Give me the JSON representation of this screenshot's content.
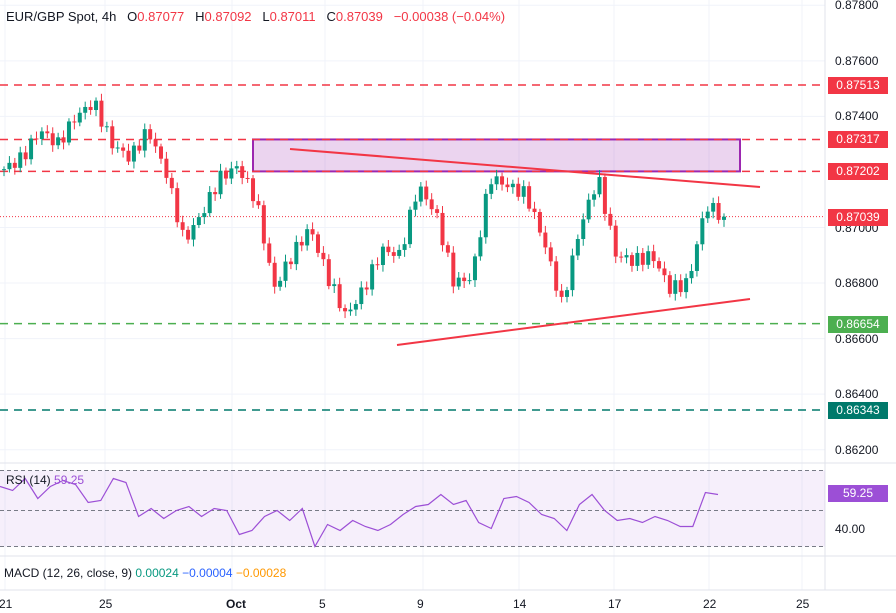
{
  "header": {
    "symbol": "EUR/GBP Spot, 4h",
    "o_label": "O",
    "o": "0.87077",
    "h_label": "H",
    "h": "0.87092",
    "l_label": "L",
    "l": "0.87011",
    "c_label": "C",
    "c": "0.87039",
    "change": "−0.00038 (−0.04%)"
  },
  "rsi": {
    "label": "RSI (14)",
    "value": "59.25",
    "tick": "40.00",
    "color": "#9c4fd6"
  },
  "macd": {
    "label": "MACD (12, 26, close, 9)",
    "v1": "0.00024",
    "v2": "−0.00004",
    "v3": "−0.00028"
  },
  "colors": {
    "up": "#089981",
    "down": "#f23645",
    "zone": "#9c27b0",
    "support": "#4caf50",
    "support2": "#00796b"
  },
  "chart_data": {
    "type": "candlestick",
    "ylim": [
      0.8618,
      0.8781
    ],
    "yticks": [
      "0.87800",
      "0.87600",
      "0.87400",
      "0.87000",
      "0.86800",
      "0.86600",
      "0.86400",
      "0.86200"
    ],
    "xticks": [
      "21",
      "25",
      "Oct",
      "5",
      "9",
      "14",
      "17",
      "22",
      "25"
    ],
    "levels": [
      {
        "label": "0.87513",
        "price": 0.87513,
        "color": "#f23645"
      },
      {
        "label": "0.87317",
        "price": 0.87317,
        "color": "#f23645"
      },
      {
        "label": "0.87202",
        "price": 0.87202,
        "color": "#f23645"
      },
      {
        "label": "0.86654",
        "price": 0.86654,
        "color": "#4caf50"
      },
      {
        "label": "0.86343",
        "price": 0.86343,
        "color": "#00796b"
      }
    ],
    "last_price": {
      "label": "0.87039",
      "price": 0.87039
    },
    "zone": [
      0.87202,
      0.87317
    ],
    "close_path": [
      0.8721,
      0.8725,
      0.8735,
      0.873,
      0.874,
      0.8745,
      0.873,
      0.8725,
      0.8735,
      0.872,
      0.8695,
      0.8705,
      0.8718,
      0.8722,
      0.871,
      0.8678,
      0.869,
      0.87,
      0.8682,
      0.8668,
      0.8678,
      0.8692,
      0.869,
      0.8715,
      0.8705,
      0.868,
      0.8682,
      0.8718,
      0.8715,
      0.8712,
      0.8695,
      0.8672,
      0.87,
      0.8718,
      0.869,
      0.8688,
      0.869,
      0.8678,
      0.868,
      0.8708,
      0.8704
    ],
    "rsi_path": [
      62,
      60,
      66,
      56,
      62,
      65,
      63,
      54,
      55,
      66,
      64,
      47,
      51,
      46,
      50,
      52,
      47,
      51,
      50,
      38,
      40,
      47,
      50,
      45,
      51,
      32,
      43,
      40,
      45,
      42,
      40,
      43,
      48,
      52,
      53,
      58,
      53,
      55,
      44,
      41,
      56,
      57,
      54,
      48,
      46,
      40,
      53,
      58,
      50,
      45,
      46,
      44,
      47,
      45,
      42,
      42,
      59,
      58
    ]
  }
}
